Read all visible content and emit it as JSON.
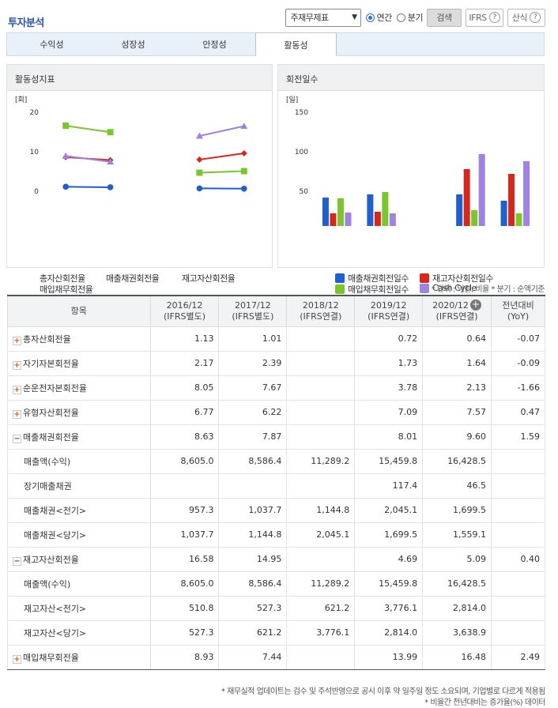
{
  "header": {
    "title": "투자분석"
  },
  "toolbar": {
    "select_value": "주재무제표",
    "radio_annual": "연간",
    "radio_quarter": "분기",
    "search_label": "검색",
    "ifrs_label": "IFRS",
    "formula_label": "산식"
  },
  "tabs": [
    {
      "label": "수익성"
    },
    {
      "label": "성장성"
    },
    {
      "label": "안정성"
    },
    {
      "label": "활동성"
    }
  ],
  "left_panel": {
    "title": "활동성지표",
    "unit": "[회]",
    "legend": [
      "총자산회전율",
      "매출채권회전율",
      "재고자산회전율",
      "매입채무회전율"
    ]
  },
  "right_panel": {
    "title": "회전일수",
    "unit": "[일]",
    "legend": [
      "매출채권회전일수",
      "재고자산회전일수",
      "매입채무회전일수",
      "Cash Cycle"
    ]
  },
  "colors": {
    "blue": "#1f5fce",
    "red": "#d7271c",
    "green": "#7cc52c",
    "purple": "#9e83e0",
    "accent": "#2a55a8"
  },
  "chart_data": [
    {
      "type": "line",
      "categories": [
        "2016/12",
        "2017/12",
        "2018/12",
        "2019/12",
        "2020/12"
      ],
      "ylim": [
        -10,
        20
      ],
      "yticks": [
        -10,
        0,
        10,
        20
      ],
      "series": [
        {
          "name": "총자산회전율",
          "values": [
            1.13,
            1.01,
            null,
            0.72,
            0.64
          ],
          "color": "#1f5fce",
          "marker": "circle"
        },
        {
          "name": "매출채권회전율",
          "values": [
            8.63,
            7.87,
            null,
            8.01,
            9.6
          ],
          "color": "#d7271c",
          "marker": "diamond"
        },
        {
          "name": "재고자산회전율",
          "values": [
            16.58,
            14.95,
            null,
            4.69,
            5.09
          ],
          "color": "#7cc52c",
          "marker": "square"
        },
        {
          "name": "매입채무회전율",
          "values": [
            8.93,
            7.44,
            null,
            13.99,
            16.48
          ],
          "color": "#9e83e0",
          "marker": "triangle"
        }
      ]
    },
    {
      "type": "bar",
      "categories": [
        "2016/12",
        "2017/12",
        "2018/12",
        "2019/12",
        "2020/12"
      ],
      "ylim": [
        0,
        150
      ],
      "yticks": [
        0,
        50,
        100,
        150
      ],
      "series": [
        {
          "name": "매출채권회전일수",
          "values": [
            42,
            46,
            null,
            46,
            38
          ],
          "color": "#1f5fce"
        },
        {
          "name": "재고자산회전일수",
          "values": [
            22,
            24,
            null,
            78,
            72
          ],
          "color": "#d7271c"
        },
        {
          "name": "매입채무회전일수",
          "values": [
            41,
            49,
            null,
            26,
            22
          ],
          "color": "#7cc52c"
        },
        {
          "name": "Cash Cycle",
          "values": [
            23,
            22,
            null,
            97,
            88
          ],
          "color": "#9e83e0"
        }
      ]
    }
  ],
  "table": {
    "unit_note": "* 단위 : 억원, 비율   * 분기 : 순액기준",
    "headers": [
      {
        "line1": "항목",
        "line2": ""
      },
      {
        "line1": "2016/12",
        "line2": "(IFRS별도)"
      },
      {
        "line1": "2017/12",
        "line2": "(IFRS별도)"
      },
      {
        "line1": "2018/12",
        "line2": "(IFRS연결)"
      },
      {
        "line1": "2019/12",
        "line2": "(IFRS연결)"
      },
      {
        "line1": "2020/12",
        "line2": "(IFRS연결)"
      },
      {
        "line1": "전년대비",
        "line2": "(YoY)"
      }
    ],
    "rows": [
      {
        "label": "총자산회전율",
        "kind": "plus",
        "values": [
          "1.13",
          "1.01",
          "",
          "0.72",
          "0.64",
          "-0.07"
        ]
      },
      {
        "label": "자기자본회전율",
        "kind": "plus",
        "values": [
          "2.17",
          "2.39",
          "",
          "1.73",
          "1.64",
          "-0.09"
        ]
      },
      {
        "label": "순운전자본회전율",
        "kind": "plus",
        "values": [
          "8.05",
          "7.67",
          "",
          "3.78",
          "2.13",
          "-1.66"
        ]
      },
      {
        "label": "유형자산회전율",
        "kind": "plus",
        "values": [
          "6.77",
          "6.22",
          "",
          "7.09",
          "7.57",
          "0.47"
        ]
      },
      {
        "label": "매출채권회전율",
        "kind": "minus",
        "values": [
          "8.63",
          "7.87",
          "",
          "8.01",
          "9.60",
          "1.59"
        ]
      },
      {
        "label": "매출액(수익)",
        "kind": "sub",
        "values": [
          "8,605.0",
          "8,586.4",
          "11,289.2",
          "15,459.8",
          "16,428.5",
          ""
        ]
      },
      {
        "label": "장기매출채권",
        "kind": "sub",
        "values": [
          "",
          "",
          "",
          "117.4",
          "46.5",
          ""
        ]
      },
      {
        "label": "매출채권<전기>",
        "kind": "sub",
        "values": [
          "957.3",
          "1,037.7",
          "1,144.8",
          "2,045.1",
          "1,699.5",
          ""
        ]
      },
      {
        "label": "매출채권<당기>",
        "kind": "sub",
        "values": [
          "1,037.7",
          "1,144.8",
          "2,045.1",
          "1,699.5",
          "1,559.1",
          ""
        ]
      },
      {
        "label": "재고자산회전율",
        "kind": "minus",
        "values": [
          "16.58",
          "14.95",
          "",
          "4.69",
          "5.09",
          "0.40"
        ]
      },
      {
        "label": "매출액(수익)",
        "kind": "sub",
        "values": [
          "8,605.0",
          "8,586.4",
          "11,289.2",
          "15,459.8",
          "16,428.5",
          ""
        ]
      },
      {
        "label": "재고자산<전기>",
        "kind": "sub",
        "values": [
          "510.8",
          "527.3",
          "621.2",
          "3,776.1",
          "2,814.0",
          ""
        ]
      },
      {
        "label": "재고자산<당기>",
        "kind": "sub",
        "values": [
          "527.3",
          "621.2",
          "3,776.1",
          "2,814.0",
          "3,638.9",
          ""
        ]
      },
      {
        "label": "매입채무회전율",
        "kind": "plus",
        "values": [
          "8.93",
          "7.44",
          "",
          "13.99",
          "16.48",
          "2.49"
        ]
      }
    ],
    "footnote1": "* 재무실적 업데이트는 검수 및 주석반영으로 공시 이후 약 일주일 정도 소요되며, 기업별로 다르게 적용됨",
    "footnote2": "* 비율간 전년대비는 증가율(%) 데이터"
  }
}
